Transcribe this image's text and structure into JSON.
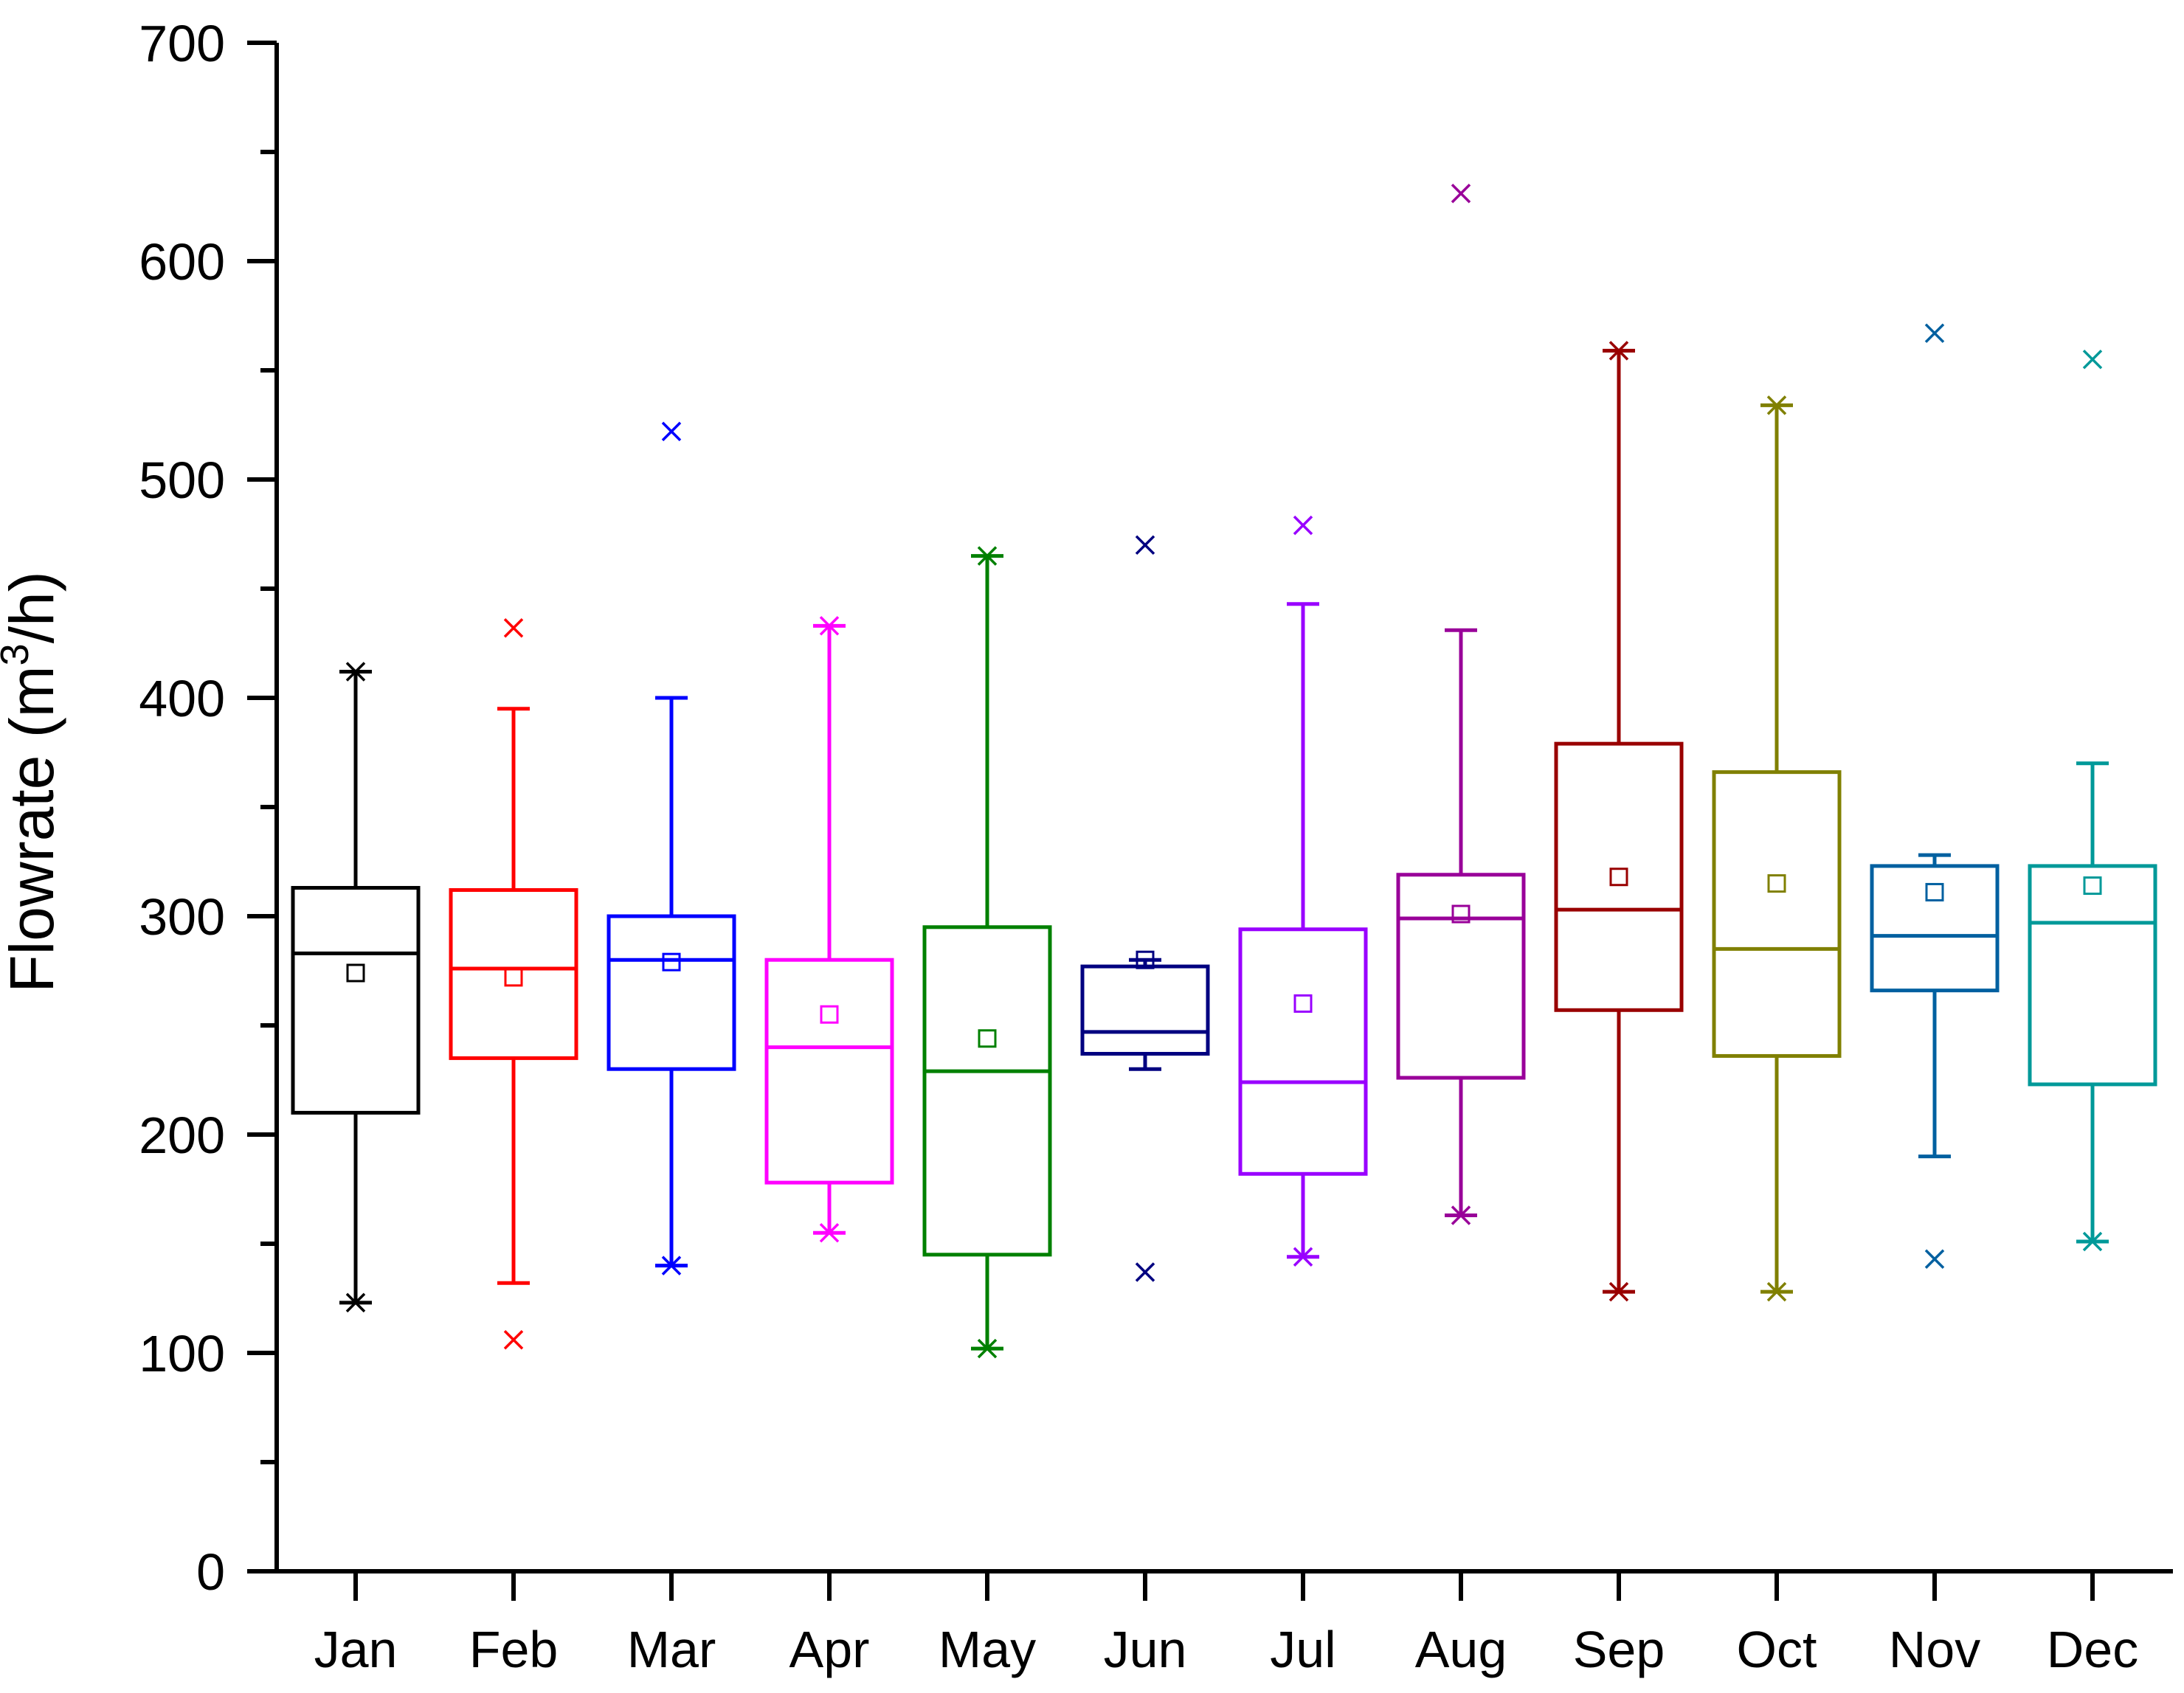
{
  "chart_data": {
    "type": "box",
    "title": "",
    "xlabel": "",
    "ylabel": "Flowrate (m³/h)",
    "ylabel_parts": {
      "main": "Flowrate (m",
      "sup": "3",
      "tail": "/h)"
    },
    "ylim": [
      0,
      700
    ],
    "yticks": [
      0,
      100,
      200,
      300,
      400,
      500,
      600,
      700
    ],
    "yticks_labels": [
      "0",
      "100",
      "200",
      "300",
      "400",
      "500",
      "600",
      "700"
    ],
    "categories": [
      "Jan",
      "Feb",
      "Mar",
      "Apr",
      "May",
      "Jun",
      "Jul",
      "Aug",
      "Sep",
      "Oct",
      "Nov",
      "Dec"
    ],
    "series": [
      {
        "name": "Jan",
        "color": "#000000",
        "q1": 210,
        "median": 283,
        "q3": 313,
        "whisker_low": 123,
        "whisker_high": 412,
        "mean": 274,
        "min_marker": 123,
        "max_marker": 412
      },
      {
        "name": "Feb",
        "color": "#ff0000",
        "q1": 235,
        "median": 276,
        "q3": 312,
        "whisker_low": 132,
        "whisker_high": 395,
        "mean": 272,
        "min_marker": 106,
        "max_marker": 432
      },
      {
        "name": "Mar",
        "color": "#0000ff",
        "q1": 230,
        "median": 280,
        "q3": 300,
        "whisker_low": 140,
        "whisker_high": 400,
        "mean": 279,
        "min_marker": 140,
        "max_marker": 522
      },
      {
        "name": "Apr",
        "color": "#ff00ff",
        "q1": 178,
        "median": 240,
        "q3": 280,
        "whisker_low": 155,
        "whisker_high": 433,
        "mean": 255,
        "min_marker": 155,
        "max_marker": 433
      },
      {
        "name": "May",
        "color": "#008000",
        "q1": 145,
        "median": 229,
        "q3": 295,
        "whisker_low": 102,
        "whisker_high": 465,
        "mean": 244,
        "min_marker": 102,
        "max_marker": 465
      },
      {
        "name": "Jun",
        "color": "#000080",
        "q1": 237,
        "median": 247,
        "q3": 277,
        "whisker_low": 230,
        "whisker_high": 280,
        "mean": 280,
        "min_marker": 137,
        "max_marker": 470
      },
      {
        "name": "Jul",
        "color": "#9900ff",
        "q1": 182,
        "median": 224,
        "q3": 294,
        "whisker_low": 144,
        "whisker_high": 443,
        "mean": 260,
        "min_marker": 144,
        "max_marker": 479
      },
      {
        "name": "Aug",
        "color": "#990099",
        "q1": 226,
        "median": 299,
        "q3": 319,
        "whisker_low": 163,
        "whisker_high": 431,
        "mean": 301,
        "min_marker": 163,
        "max_marker": 631
      },
      {
        "name": "Sep",
        "color": "#990000",
        "q1": 257,
        "median": 303,
        "q3": 379,
        "whisker_low": 128,
        "whisker_high": 559,
        "mean": 318,
        "min_marker": 128,
        "max_marker": 559
      },
      {
        "name": "Oct",
        "color": "#808000",
        "q1": 236,
        "median": 285,
        "q3": 366,
        "whisker_low": 128,
        "whisker_high": 534,
        "mean": 315,
        "min_marker": 128,
        "max_marker": 534
      },
      {
        "name": "Nov",
        "color": "#0060a0",
        "q1": 266,
        "median": 291,
        "q3": 323,
        "whisker_low": 190,
        "whisker_high": 328,
        "mean": 311,
        "min_marker": 143,
        "max_marker": 567
      },
      {
        "name": "Dec",
        "color": "#009999",
        "q1": 223,
        "median": 297,
        "q3": 323,
        "whisker_low": 151,
        "whisker_high": 370,
        "mean": 314,
        "min_marker": 151,
        "max_marker": 555
      }
    ]
  }
}
